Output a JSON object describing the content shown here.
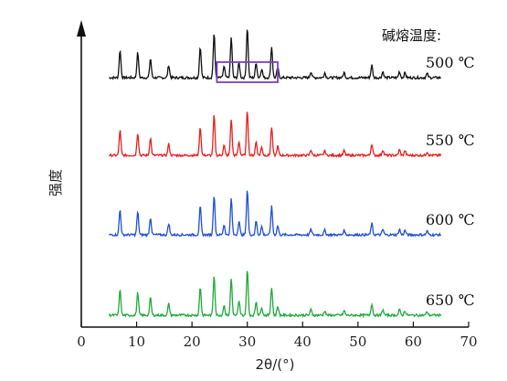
{
  "chart_data": {
    "type": "line",
    "xlabel": "2θ/(°)",
    "ylabel": "强度",
    "xlim": [
      0,
      70
    ],
    "xticks": [
      0,
      10,
      20,
      30,
      40,
      50,
      60,
      70
    ],
    "legend_title": "碱熔温度:",
    "highlight_box": {
      "series": "500 ℃",
      "x_range": [
        24.5,
        35.5
      ],
      "color": "#7b3fc4"
    },
    "peaks": [
      {
        "x": 7.0,
        "rel": 0.55
      },
      {
        "x": 10.2,
        "rel": 0.5
      },
      {
        "x": 12.5,
        "rel": 0.38
      },
      {
        "x": 15.8,
        "rel": 0.25
      },
      {
        "x": 21.5,
        "rel": 0.62
      },
      {
        "x": 24.0,
        "rel": 0.88
      },
      {
        "x": 25.8,
        "rel": 0.22
      },
      {
        "x": 27.1,
        "rel": 0.8
      },
      {
        "x": 28.5,
        "rel": 0.3
      },
      {
        "x": 30.0,
        "rel": 1.0
      },
      {
        "x": 31.6,
        "rel": 0.3
      },
      {
        "x": 32.6,
        "rel": 0.18
      },
      {
        "x": 34.4,
        "rel": 0.62
      },
      {
        "x": 35.5,
        "rel": 0.2
      },
      {
        "x": 41.5,
        "rel": 0.12
      },
      {
        "x": 44.0,
        "rel": 0.1
      },
      {
        "x": 47.5,
        "rel": 0.1
      },
      {
        "x": 52.5,
        "rel": 0.25
      },
      {
        "x": 54.5,
        "rel": 0.12
      },
      {
        "x": 57.5,
        "rel": 0.12
      },
      {
        "x": 58.5,
        "rel": 0.1
      },
      {
        "x": 62.5,
        "rel": 0.08
      }
    ],
    "x_start": 5.0,
    "x_end": 65.0,
    "series": [
      {
        "name": "500 ℃",
        "color": "#111111"
      },
      {
        "name": "550 ℃",
        "color": "#e8201e"
      },
      {
        "name": "600 ℃",
        "color": "#1f4fd6"
      },
      {
        "name": "650 ℃",
        "color": "#1faa3a"
      }
    ]
  }
}
